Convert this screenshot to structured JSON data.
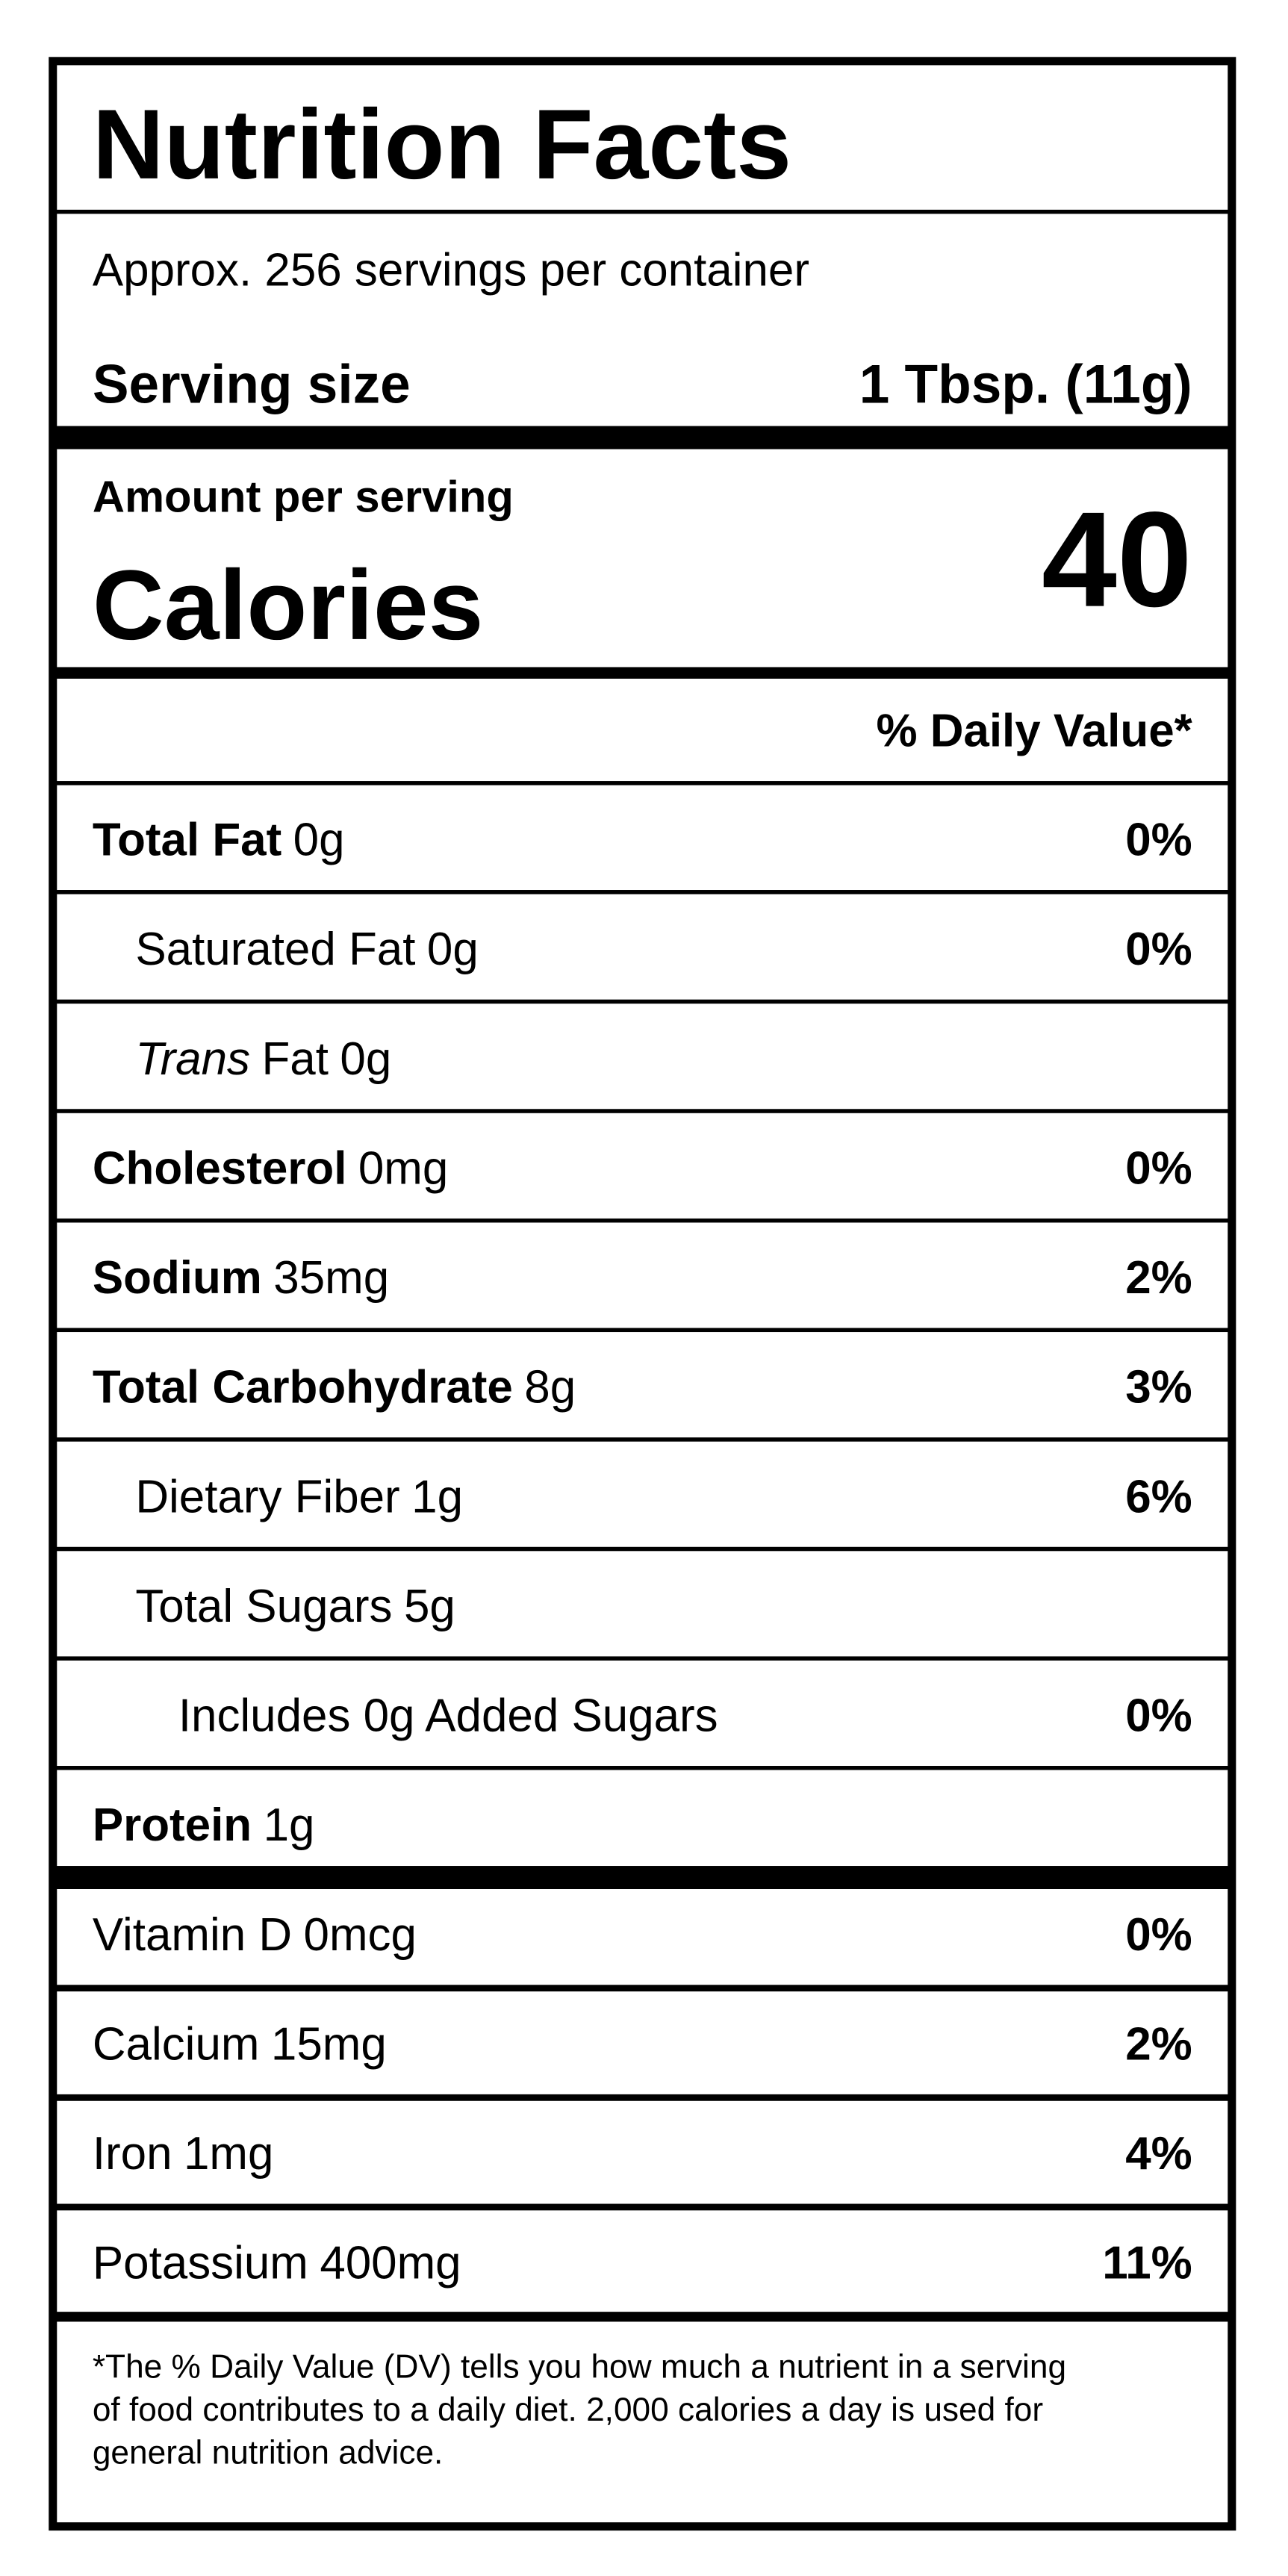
{
  "title": "Nutrition Facts",
  "servings": "Approx. 256 servings per container",
  "serving_size": {
    "label": "Serving size",
    "value": "1 Tbsp. (11g)"
  },
  "amount_per_serving": "Amount per serving",
  "calories": {
    "label": "Calories",
    "value": 40
  },
  "dv_header": "% Daily Value*",
  "nutrients": [
    {
      "name": "Total Fat",
      "amount": "0g",
      "dv": "0%"
    },
    {
      "name": "Saturated Fat",
      "amount": "0g",
      "dv": "0%"
    },
    {
      "prefix": "Trans",
      "name": "Fat",
      "amount": "0g"
    },
    {
      "name": "Cholesterol",
      "amount": "0mg",
      "dv": "0%"
    },
    {
      "name": "Sodium",
      "amount": "35mg",
      "dv": "2%"
    },
    {
      "name": "Total Carbohydrate",
      "amount": "8g",
      "dv": "3%"
    },
    {
      "name": "Dietary Fiber",
      "amount": "1g",
      "dv": "6%"
    },
    {
      "name": "Total Sugars",
      "amount": "5g"
    },
    {
      "name": "Includes 0g Added Sugars",
      "dv": "0%"
    },
    {
      "name": "Protein",
      "amount": "1g"
    }
  ],
  "vitamins": [
    {
      "name": "Vitamin D",
      "amount": "0mcg",
      "dv": "0%"
    },
    {
      "name": "Calcium",
      "amount": "15mg",
      "dv": "2%"
    },
    {
      "name": "Iron",
      "amount": "1mg",
      "dv": "4%"
    },
    {
      "name": "Potassium",
      "amount": "400mg",
      "dv": "11%"
    }
  ],
  "footnote": [
    "*The % Daily Value (DV) tells you how much a nutrient in a serving",
    "of food contributes to a daily diet. 2,000 calories a day is used for",
    "general nutrition advice."
  ]
}
